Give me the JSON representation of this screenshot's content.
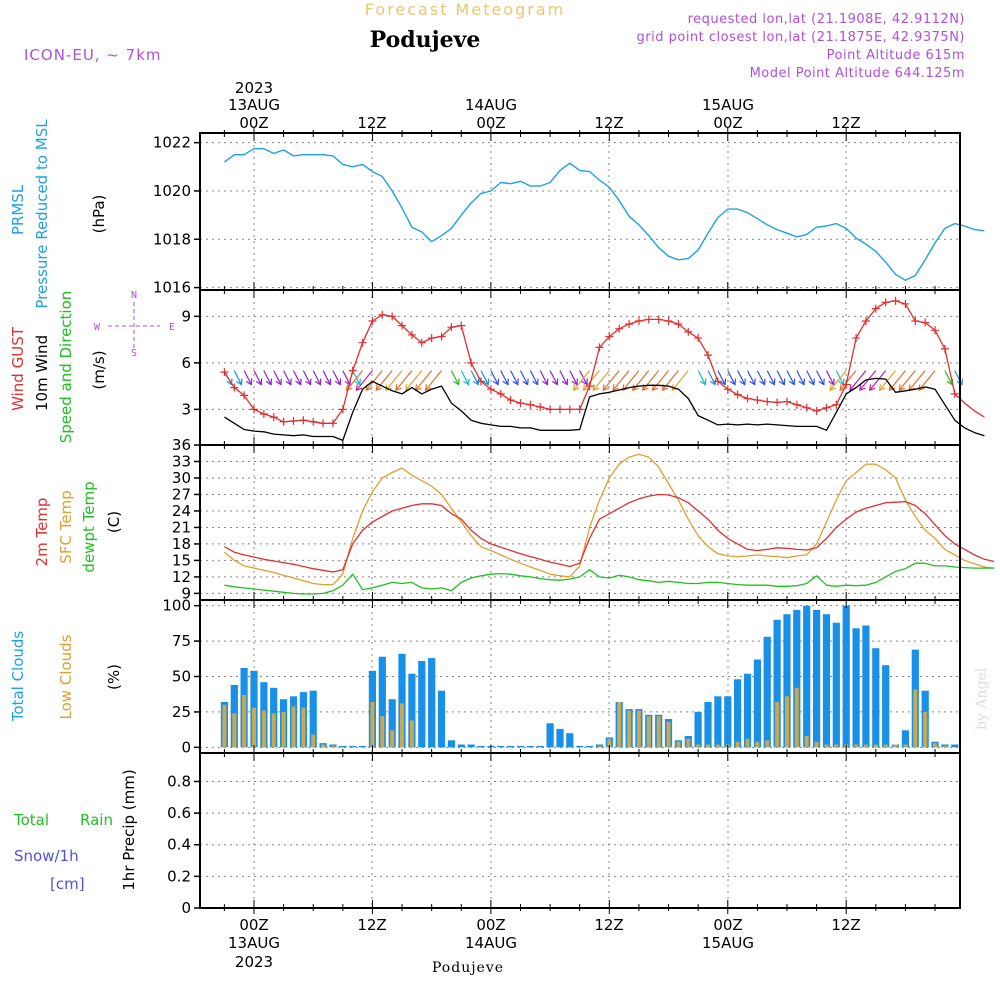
{
  "header": {
    "top_title": "Forecast Meteogram",
    "location": "Podujeve",
    "model": "ICON-EU, ~ 7km",
    "requested": "requested lon,lat (21.1908E, 42.9112N)",
    "grid_point": "grid point closest lon,lat (21.1875E, 42.9375N)",
    "point_altitude": "Point Altitude 615m",
    "model_altitude": "Model Point Altitude 644.125m",
    "footer_location": "Podujeve",
    "credit": "by Angel"
  },
  "time_axis": {
    "top_year": "2023",
    "bottom_year": "2023",
    "hour_labels": [
      "00Z",
      "12Z",
      "00Z",
      "12Z",
      "00Z",
      "12Z"
    ],
    "date_labels": [
      "13AUG",
      "14AUG",
      "15AUG"
    ]
  },
  "colors": {
    "pressure": "#1fa0e8",
    "gust": "#e03030",
    "wind": "#000000",
    "temp2m": "#e03030",
    "sfc": "#e0a030",
    "dewpt": "#20c020",
    "total_clouds": "#1890e8",
    "low_clouds": "#c8a850",
    "grid": "#888888",
    "purple": "#b050d8",
    "gold": "#e8c870",
    "cyan_label": "#1fa0e8",
    "green_label": "#20c020",
    "snow_label": "#5050e0"
  },
  "panels": {
    "pressure": {
      "label1": "PRMSL",
      "label2": "Pressure Reduced to MSL",
      "unit": "(hPa)"
    },
    "wind": {
      "label_gust": "Wind GUST",
      "label_wind": "10m Wind",
      "label_dir": "Speed and Direction",
      "unit": "(m/s)",
      "compass": {
        "n": "N",
        "s": "S",
        "e": "E",
        "w": "W"
      }
    },
    "temp": {
      "label1": "2m Temp",
      "label2": "SFC Temp",
      "label3": "dewpt Temp",
      "unit": "(C)"
    },
    "clouds": {
      "label1": "Total Clouds",
      "label2": "Low Clouds",
      "unit": "(%)"
    },
    "precip": {
      "label_total": "Total",
      "label_rain": "Rain",
      "label_snow": "Snow/1h",
      "label_cm": "[cm]",
      "unit": "1hr Precip (mm)"
    }
  },
  "chart_data": [
    {
      "type": "line",
      "panel": "pressure",
      "ylabel": "(hPa)",
      "ylim": [
        1015.9,
        1022.4
      ],
      "yticks": [
        1016,
        1018,
        1020,
        1022
      ],
      "x_start": "2023-08-12T21:00Z",
      "step_hours": 1,
      "series": [
        {
          "name": "PRMSL",
          "values": [
            1021.2,
            1021.5,
            1021.5,
            1021.75,
            1021.75,
            1021.55,
            1021.7,
            1021.45,
            1021.5,
            1021.5,
            1021.5,
            1021.45,
            1021.1,
            1021.0,
            1021.1,
            1020.8,
            1020.6,
            1020.0,
            1019.3,
            1018.5,
            1018.3,
            1017.9,
            1018.15,
            1018.45,
            1019.0,
            1019.5,
            1019.9,
            1020.0,
            1020.35,
            1020.3,
            1020.4,
            1020.2,
            1020.2,
            1020.35,
            1020.85,
            1021.15,
            1020.85,
            1020.8,
            1020.45,
            1020.15,
            1019.6,
            1018.95,
            1018.6,
            1018.15,
            1017.65,
            1017.3,
            1017.15,
            1017.2,
            1017.55,
            1018.25,
            1018.9,
            1019.25,
            1019.25,
            1019.1,
            1018.85,
            1018.6,
            1018.4,
            1018.25,
            1018.1,
            1018.2,
            1018.5,
            1018.55,
            1018.65,
            1018.45,
            1018.05,
            1017.8,
            1017.5,
            1017.05,
            1016.55,
            1016.3,
            1016.5,
            1017.15,
            1017.85,
            1018.45,
            1018.65,
            1018.55,
            1018.4,
            1018.35
          ]
        }
      ]
    },
    {
      "type": "line",
      "panel": "wind",
      "ylabel": "(m/s)",
      "ylim": [
        0.7,
        10.7
      ],
      "yticks": [
        3,
        6,
        9
      ],
      "series": [
        {
          "name": "Wind GUST",
          "values": [
            5.4,
            4.4,
            3.9,
            3.0,
            2.7,
            2.5,
            2.2,
            2.25,
            2.3,
            2.2,
            2.1,
            2.1,
            3.0,
            5.5,
            7.3,
            8.7,
            9.1,
            9.0,
            8.4,
            7.8,
            7.3,
            7.6,
            7.7,
            8.3,
            8.4,
            6.0,
            4.8,
            4.3,
            4.0,
            3.6,
            3.4,
            3.3,
            3.15,
            3.0,
            3.0,
            3.0,
            3.0,
            4.5,
            7.0,
            7.7,
            8.2,
            8.5,
            8.7,
            8.8,
            8.8,
            8.7,
            8.5,
            8.0,
            7.6,
            6.5,
            4.8,
            4.3,
            3.95,
            3.7,
            3.6,
            3.5,
            3.45,
            3.5,
            3.3,
            3.1,
            2.9,
            3.1,
            3.3,
            4.6,
            7.6,
            8.7,
            9.5,
            9.9,
            10.0,
            9.8,
            8.7,
            8.6,
            8.1,
            6.9,
            4.0,
            3.4,
            2.9,
            2.5
          ]
        },
        {
          "name": "10m Wind",
          "values": [
            2.5,
            2.1,
            1.7,
            1.6,
            1.55,
            1.4,
            1.35,
            1.3,
            1.35,
            1.25,
            1.25,
            1.25,
            1.0,
            2.8,
            4.3,
            4.8,
            4.5,
            4.2,
            4.0,
            4.4,
            4.0,
            4.3,
            4.5,
            3.4,
            2.9,
            2.3,
            2.1,
            2.0,
            1.9,
            1.9,
            1.8,
            1.8,
            1.65,
            1.65,
            1.65,
            1.65,
            1.7,
            3.8,
            4.0,
            4.1,
            4.25,
            4.4,
            4.5,
            4.55,
            4.55,
            4.5,
            4.3,
            3.7,
            2.6,
            2.3,
            2.0,
            2.05,
            2.0,
            2.05,
            2.0,
            2.05,
            2.0,
            1.95,
            1.9,
            1.9,
            1.9,
            1.65,
            2.8,
            4.0,
            4.4,
            4.9,
            5.0,
            4.95,
            4.1,
            4.2,
            4.3,
            4.45,
            4.3,
            3.3,
            2.3,
            1.8,
            1.5,
            1.3
          ]
        },
        {
          "name": "Speed and Direction",
          "values": []
        }
      ]
    },
    {
      "type": "line",
      "panel": "temp",
      "ylabel": "(C)",
      "ylim": [
        7.8,
        36
      ],
      "yticks": [
        9,
        12,
        15,
        18,
        21,
        24,
        27,
        30,
        33,
        36
      ],
      "series": [
        {
          "name": "2m Temp",
          "values": [
            17.5,
            16.5,
            16.0,
            15.6,
            15.2,
            14.9,
            14.6,
            14.3,
            13.9,
            13.5,
            13.2,
            12.9,
            13.3,
            18.0,
            20.5,
            22.0,
            23.0,
            24.0,
            24.5,
            25.0,
            25.3,
            25.3,
            25.0,
            23.5,
            22.5,
            20.5,
            19.0,
            18.0,
            17.4,
            16.8,
            16.2,
            15.7,
            15.2,
            14.7,
            14.3,
            13.9,
            14.5,
            19.0,
            22.5,
            23.5,
            24.5,
            25.5,
            26.2,
            26.7,
            27.0,
            26.9,
            26.4,
            25.5,
            24.0,
            22.5,
            20.5,
            19.0,
            18.0,
            17.0,
            16.8,
            17.0,
            17.3,
            17.2,
            17.0,
            16.9,
            17.3,
            19.0,
            21.0,
            22.5,
            23.8,
            24.5,
            25.0,
            25.5,
            25.6,
            25.7,
            25.0,
            23.5,
            21.5,
            19.5,
            18.0,
            17.0,
            16.0,
            15.2,
            14.8
          ]
        },
        {
          "name": "SFC Temp",
          "values": [
            16.5,
            15.0,
            14.0,
            13.6,
            13.2,
            12.8,
            12.3,
            11.8,
            11.3,
            10.8,
            10.6,
            10.6,
            12.5,
            19.0,
            24.0,
            27.5,
            30.0,
            31.0,
            31.8,
            30.5,
            29.5,
            28.5,
            27.0,
            24.5,
            22.0,
            19.5,
            17.5,
            16.8,
            16.0,
            15.2,
            14.5,
            13.8,
            13.2,
            12.5,
            12.2,
            12.0,
            14.0,
            21.0,
            26.0,
            30.0,
            32.5,
            33.8,
            34.3,
            33.8,
            32.0,
            29.0,
            26.0,
            22.5,
            19.5,
            17.5,
            16.2,
            15.8,
            15.7,
            15.8,
            16.0,
            15.8,
            15.7,
            15.5,
            15.8,
            16.0,
            18.0,
            22.0,
            26.0,
            29.5,
            31.0,
            32.5,
            32.5,
            31.5,
            30.0,
            26.0,
            23.0,
            20.5,
            19.0,
            17.0,
            16.0,
            15.0,
            14.4,
            13.8,
            13.6
          ]
        },
        {
          "name": "dewpt Temp",
          "values": [
            10.5,
            10.2,
            10.0,
            9.8,
            9.6,
            9.4,
            9.2,
            9.0,
            8.9,
            8.9,
            9.0,
            9.5,
            10.5,
            12.5,
            9.7,
            10.0,
            10.5,
            11.0,
            10.8,
            11.0,
            10.0,
            9.8,
            10.0,
            9.5,
            11.0,
            11.8,
            12.2,
            12.5,
            12.6,
            12.5,
            12.2,
            12.0,
            11.7,
            11.5,
            11.4,
            11.6,
            12.0,
            13.3,
            12.0,
            11.8,
            12.3,
            12.0,
            11.5,
            11.3,
            11.0,
            11.2,
            11.0,
            10.8,
            10.8,
            11.0,
            11.0,
            10.8,
            10.6,
            10.5,
            10.5,
            10.5,
            10.3,
            10.3,
            10.4,
            10.8,
            12.2,
            10.5,
            10.3,
            10.5,
            10.4,
            10.5,
            11.0,
            12.0,
            13.0,
            13.5,
            14.5,
            14.5,
            14.0,
            14.0,
            13.8,
            13.7,
            13.6,
            13.6,
            13.6
          ]
        }
      ]
    },
    {
      "type": "bar",
      "panel": "clouds",
      "ylabel": "(%)",
      "ylim": [
        -4,
        104
      ],
      "yticks": [
        0,
        25,
        50,
        75,
        100
      ],
      "series": [
        {
          "name": "Total Clouds",
          "values": [
            32,
            44,
            56,
            54,
            46,
            42,
            34,
            36,
            39,
            40,
            3,
            2,
            1,
            1,
            1,
            54,
            64,
            34,
            66,
            52,
            61,
            63,
            40,
            5,
            2,
            2,
            1,
            1,
            1,
            1,
            1,
            1,
            1,
            17,
            13,
            10,
            1,
            1,
            2,
            7,
            32,
            27,
            27,
            23,
            23,
            20,
            5,
            8,
            25,
            32,
            36,
            36,
            48,
            52,
            62,
            78,
            90,
            94,
            97,
            100,
            97,
            94,
            88,
            100,
            84,
            86,
            70,
            58,
            2,
            12,
            69,
            40,
            4,
            2,
            2,
            3,
            7,
            29,
            14
          ]
        },
        {
          "name": "Low Clouds",
          "values": [
            30,
            24,
            37,
            28,
            26,
            24,
            25,
            29,
            28,
            9,
            2,
            1,
            0,
            0,
            0,
            32,
            22,
            12,
            31,
            19,
            0,
            0,
            0,
            0,
            0,
            0,
            0,
            0,
            0,
            0,
            0,
            0,
            0,
            0,
            0,
            0,
            0,
            0,
            1,
            6,
            32,
            26,
            26,
            22,
            22,
            18,
            4,
            6,
            2,
            2,
            2,
            2,
            4,
            6,
            4,
            5,
            32,
            36,
            42,
            8,
            4,
            2,
            2,
            2,
            2,
            2,
            2,
            2,
            2,
            2,
            41,
            25,
            3,
            1,
            0,
            0,
            0,
            0,
            0
          ]
        }
      ]
    },
    {
      "type": "bar",
      "panel": "precip",
      "ylabel": "1hr Precip (mm)",
      "ylim": [
        0,
        0.98
      ],
      "yticks": [
        0,
        0.2,
        0.4,
        0.6,
        0.8
      ],
      "series": [
        {
          "name": "Total Rain",
          "values": []
        },
        {
          "name": "Snow/1h [cm]",
          "values": []
        }
      ]
    }
  ]
}
